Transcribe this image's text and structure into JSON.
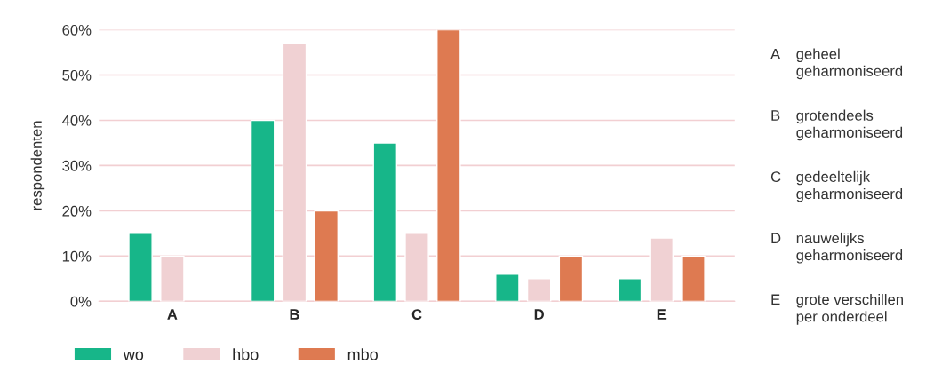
{
  "chart_data": {
    "type": "bar",
    "ylabel": "respondenten",
    "categories": [
      "A",
      "B",
      "C",
      "D",
      "E"
    ],
    "series": [
      {
        "name": "wo",
        "color": "#17b689",
        "values": [
          15,
          40,
          35,
          6,
          5
        ]
      },
      {
        "name": "hbo",
        "color": "#f0d1d3",
        "values": [
          10,
          57,
          15,
          5,
          14
        ]
      },
      {
        "name": "mbo",
        "color": "#de7a51",
        "values": [
          null,
          20,
          60,
          10,
          10
        ]
      }
    ],
    "ylim": [
      0,
      60
    ],
    "yticks": [
      {
        "value": 0,
        "label": "0%"
      },
      {
        "value": 10,
        "label": "10%"
      },
      {
        "value": 20,
        "label": "20%"
      },
      {
        "value": 30,
        "label": "30%"
      },
      {
        "value": 40,
        "label": "40%"
      },
      {
        "value": 50,
        "label": "50%"
      },
      {
        "value": 60,
        "label": "60%"
      }
    ],
    "grid": "y",
    "legend": "bottom left",
    "annotations": [
      "A geheel\ngeharmoniseerd",
      "B grotendeels\ngeharmoniseerd",
      "C gedeeltelijk\ngeharmoniseerd",
      "D nauwelijks\ngeharmoniseerd",
      "E grote verschillen\nper onderdeel"
    ]
  }
}
